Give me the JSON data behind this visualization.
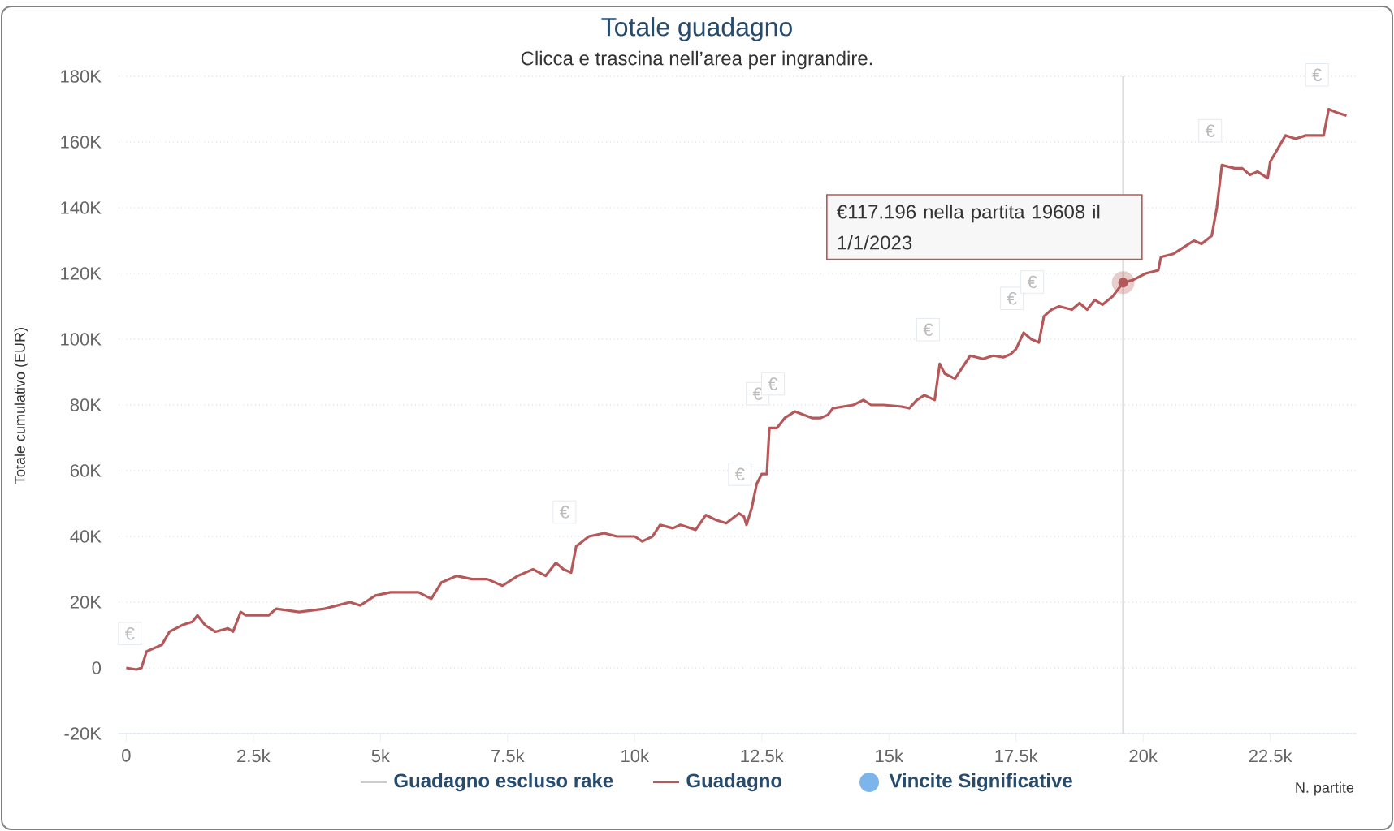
{
  "chart_data": {
    "type": "line",
    "title": "Totale guadagno",
    "subtitle": "Clicca e trascina nell’area per ingrandire.",
    "xlabel": "N. partite",
    "ylabel": "Totale cumulativo (EUR)",
    "xlim": [
      -150,
      24200
    ],
    "ylim": [
      -20000,
      180000
    ],
    "xticks": [
      0,
      {
        "value": 2500,
        "label": "2.5k"
      },
      {
        "value": 5000,
        "label": "5k"
      },
      {
        "value": 7500,
        "label": "7.5k"
      },
      {
        "value": 10000,
        "label": "10k"
      },
      {
        "value": 12500,
        "label": "12.5k"
      },
      {
        "value": 15000,
        "label": "15k"
      },
      {
        "value": 17500,
        "label": "17.5k"
      },
      {
        "value": 20000,
        "label": "20k"
      },
      {
        "value": 22500,
        "label": "22.5k"
      }
    ],
    "yticks": [
      {
        "value": -20000,
        "label": "-20K"
      },
      0,
      {
        "value": 20000,
        "label": "20K"
      },
      {
        "value": 40000,
        "label": "40K"
      },
      {
        "value": 60000,
        "label": "60K"
      },
      {
        "value": 80000,
        "label": "80K"
      },
      {
        "value": 100000,
        "label": "100K"
      },
      {
        "value": 120000,
        "label": "120K"
      },
      {
        "value": 140000,
        "label": "140K"
      },
      {
        "value": 160000,
        "label": "160K"
      },
      {
        "value": 180000,
        "label": "180K"
      }
    ],
    "grid": "y",
    "legend": "bottom",
    "marker": "none",
    "line_style": "solid",
    "series": [
      {
        "name": "Guadagno escluso rake",
        "color": "#cccccc"
      },
      {
        "name": "Guadagno",
        "color": "#b5585a",
        "x": [
          0,
          200,
          300,
          400,
          700,
          850,
          1100,
          1300,
          1400,
          1550,
          1750,
          2000,
          2100,
          2250,
          2350,
          2800,
          2950,
          3400,
          3900,
          4400,
          4600,
          4900,
          5200,
          5750,
          6000,
          6200,
          6500,
          6800,
          7100,
          7400,
          7700,
          8000,
          8250,
          8450,
          8600,
          8750,
          8850,
          9100,
          9400,
          9650,
          10000,
          10150,
          10350,
          10500,
          10750,
          10900,
          11200,
          11400,
          11600,
          11800,
          12050,
          12150,
          12200,
          12300,
          12400,
          12500,
          12600,
          12650,
          12800,
          12950,
          13150,
          13500,
          13650,
          13800,
          13900,
          14100,
          14300,
          14500,
          14650,
          14900,
          15250,
          15400,
          15550,
          15700,
          15900,
          16000,
          16100,
          16300,
          16450,
          16600,
          16850,
          17050,
          17250,
          17400,
          17500,
          17650,
          17800,
          17950,
          18050,
          18200,
          18350,
          18600,
          18750,
          18900,
          19050,
          19200,
          19400,
          19608,
          19800,
          20050,
          20300,
          20350,
          20600,
          20800,
          21000,
          21150,
          21350,
          21450,
          21550,
          21800,
          21950,
          22100,
          22250,
          22450,
          22500,
          22650,
          22800,
          23000,
          23200,
          23550,
          23650,
          23800,
          24000
        ],
        "values": [
          0,
          -500,
          0,
          5000,
          7000,
          11000,
          13000,
          14000,
          16000,
          13000,
          11000,
          12000,
          11000,
          17000,
          16000,
          16000,
          18000,
          17000,
          18000,
          20000,
          19000,
          22000,
          23000,
          23000,
          21000,
          26000,
          28000,
          27000,
          27000,
          25000,
          28000,
          30000,
          28000,
          32000,
          30000,
          29000,
          37000,
          40000,
          41000,
          40000,
          40000,
          38500,
          40000,
          43500,
          42500,
          43500,
          42000,
          46500,
          45000,
          44000,
          47000,
          46000,
          43500,
          48500,
          56000,
          59000,
          59000,
          73000,
          73000,
          76000,
          78000,
          76000,
          76000,
          77000,
          79000,
          79500,
          80000,
          81500,
          80000,
          80000,
          79500,
          79000,
          81500,
          83000,
          81500,
          92500,
          89500,
          88000,
          91500,
          95000,
          94000,
          95000,
          94500,
          95500,
          97000,
          102000,
          100000,
          99000,
          107000,
          109000,
          110000,
          109000,
          111000,
          109000,
          112000,
          110500,
          113000,
          117196,
          118000,
          120000,
          121000,
          125000,
          126000,
          128000,
          130000,
          129000,
          131500,
          140000,
          153000,
          152000,
          152000,
          150000,
          151000,
          149000,
          154000,
          158000,
          162000,
          161000,
          162000,
          162000,
          170000,
          169000,
          168000
        ]
      },
      {
        "name": "Vincite Significative",
        "color": "#7cb5ec",
        "type": "scatter"
      }
    ],
    "ref_lines": [
      {
        "axis": "x",
        "value": 19608,
        "color": "#cccccc"
      }
    ],
    "annotations": [
      {
        "text": "€117.196 nella partita 19608 il 1/1/2023",
        "x": 19608,
        "y": 117196
      },
      {
        "text": "€",
        "x": 300,
        "y": 0
      },
      {
        "text": "€",
        "x": 8850,
        "y": 37000
      },
      {
        "text": "€",
        "x": 12300,
        "y": 48500
      },
      {
        "text": "€",
        "x": 12650,
        "y": 73000
      },
      {
        "text": "€",
        "x": 12950,
        "y": 76000
      },
      {
        "text": "€",
        "x": 16000,
        "y": 92500
      },
      {
        "text": "€",
        "x": 17650,
        "y": 102000
      },
      {
        "text": "€",
        "x": 18050,
        "y": 107000
      },
      {
        "text": "€",
        "x": 21550,
        "y": 153000
      },
      {
        "text": "€",
        "x": 23650,
        "y": 170000
      }
    ]
  }
}
